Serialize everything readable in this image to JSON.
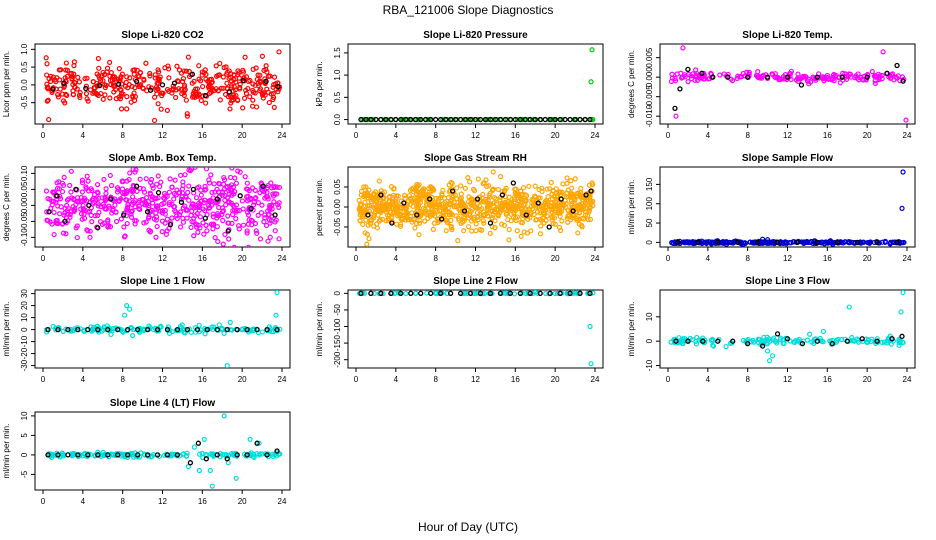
{
  "figure_title": "RBA_121006  Slope Diagnostics",
  "x_axis_label": "Hour of Day (UTC)",
  "colors": {
    "axis": "#000000",
    "overlay_points": "#000000"
  },
  "chart_data": [
    {
      "type": "scatter",
      "title": "Slope Li-820 CO2",
      "ylabel": "Licor ppm per min.",
      "xlim": [
        0,
        24
      ],
      "xticks": [
        0,
        4,
        8,
        12,
        16,
        20,
        24
      ],
      "ylim": [
        -1.1,
        1.15
      ],
      "yticks": [
        -0.5,
        0.0,
        0.5,
        1.0
      ],
      "ytick_labels": [
        "-0.5",
        "0.0",
        "0.5",
        "1.0"
      ],
      "color": "#ff0000",
      "n_points": 400,
      "spread": 0.28,
      "outliers": [
        [
          11.2,
          -1.0
        ],
        [
          23.7,
          0.93
        ],
        [
          14.6,
          0.78
        ],
        [
          14.5,
          -0.88
        ]
      ],
      "black_points": [
        [
          2.1,
          0.05
        ],
        [
          4.3,
          -0.1
        ],
        [
          7.6,
          0.02
        ],
        [
          9.4,
          0.1
        ],
        [
          12.0,
          0.0
        ],
        [
          13.2,
          0.05
        ],
        [
          15.0,
          0.3
        ],
        [
          16.3,
          -0.3
        ],
        [
          18.7,
          -0.2
        ],
        [
          20.1,
          0.12
        ],
        [
          22.4,
          0.1
        ],
        [
          23.6,
          -0.05
        ],
        [
          1.0,
          -0.12
        ],
        [
          5.7,
          -0.02
        ],
        [
          10.8,
          -0.15
        ]
      ]
    },
    {
      "type": "scatter",
      "title": "Slope Li-820 Pressure",
      "ylabel": "kPa per min.",
      "xlim": [
        0,
        24
      ],
      "xticks": [
        0,
        4,
        8,
        12,
        16,
        20,
        24
      ],
      "ylim": [
        -0.1,
        1.7
      ],
      "yticks": [
        0.0,
        0.5,
        1.0,
        1.5
      ],
      "ytick_labels": [
        "0.0",
        "0.5",
        "1.0",
        "1.5"
      ],
      "color": "#00cc00",
      "n_points": 80,
      "spread": 0.0,
      "outliers": [
        [
          23.7,
          1.57
        ],
        [
          23.6,
          0.85
        ]
      ],
      "black_points": [
        [
          0.5,
          0.0
        ],
        [
          1.0,
          0.0
        ],
        [
          1.5,
          0.0
        ],
        [
          2.0,
          0.0
        ],
        [
          2.5,
          0.0
        ],
        [
          3.0,
          0.0
        ],
        [
          3.5,
          0.0
        ],
        [
          4.0,
          0.0
        ],
        [
          4.5,
          0.0
        ],
        [
          5.0,
          0.0
        ],
        [
          5.5,
          0.0
        ],
        [
          6.0,
          0.0
        ],
        [
          6.5,
          0.0
        ],
        [
          7.0,
          0.0
        ],
        [
          7.5,
          0.0
        ],
        [
          8.0,
          0.0
        ],
        [
          8.5,
          0.0
        ],
        [
          9.0,
          0.0
        ],
        [
          9.5,
          0.0
        ],
        [
          10.0,
          0.0
        ],
        [
          10.5,
          0.0
        ],
        [
          11.0,
          0.0
        ],
        [
          11.5,
          0.0
        ],
        [
          12.0,
          0.0
        ],
        [
          12.5,
          0.0
        ],
        [
          13.0,
          0.0
        ],
        [
          13.5,
          0.0
        ],
        [
          14.0,
          0.0
        ],
        [
          14.5,
          0.0
        ],
        [
          15.0,
          0.0
        ],
        [
          15.5,
          0.0
        ],
        [
          16.0,
          0.0
        ],
        [
          16.5,
          0.0
        ],
        [
          17.0,
          0.0
        ],
        [
          17.5,
          0.0
        ],
        [
          18.0,
          0.0
        ],
        [
          18.5,
          0.0
        ],
        [
          19.0,
          0.0
        ],
        [
          19.5,
          0.0
        ],
        [
          20.0,
          0.0
        ],
        [
          20.5,
          0.0
        ],
        [
          21.0,
          0.0
        ],
        [
          21.5,
          0.0
        ],
        [
          22.0,
          0.0
        ],
        [
          22.5,
          0.0
        ],
        [
          23.0,
          0.0
        ],
        [
          23.5,
          0.0
        ]
      ]
    },
    {
      "type": "scatter",
      "title": "Slope Li-820 Temp.",
      "ylabel": "degrees C per min.",
      "xlim": [
        0,
        24
      ],
      "xticks": [
        0,
        4,
        8,
        12,
        16,
        20,
        24
      ],
      "ylim": [
        -0.012,
        0.0085
      ],
      "yticks": [
        -0.01,
        -0.005,
        0.0,
        0.005
      ],
      "ytick_labels": [
        "-0.010",
        "-0.005",
        "0.000",
        "0.005"
      ],
      "color": "#ff00ff",
      "n_points": 200,
      "spread": 0.0006,
      "outliers": [
        [
          1.5,
          0.0075
        ],
        [
          0.8,
          -0.01
        ],
        [
          23.9,
          -0.011
        ],
        [
          21.6,
          0.0065
        ]
      ],
      "black_points": [
        [
          0.7,
          -0.008
        ],
        [
          1.2,
          -0.003
        ],
        [
          2.0,
          0.002
        ],
        [
          3.4,
          0.001
        ],
        [
          4.5,
          0.0
        ],
        [
          6.0,
          0.0
        ],
        [
          8.0,
          0.0
        ],
        [
          10.0,
          0.0
        ],
        [
          12.0,
          0.0
        ],
        [
          13.4,
          -0.002
        ],
        [
          15.0,
          0.0
        ],
        [
          17.5,
          0.0
        ],
        [
          20.0,
          0.0
        ],
        [
          22.0,
          0.001
        ],
        [
          23.0,
          0.003
        ],
        [
          23.6,
          -0.001
        ]
      ]
    },
    {
      "type": "scatter",
      "title": "Slope Amb. Box Temp.",
      "ylabel": "degrees C per min.",
      "xlim": [
        0,
        24
      ],
      "xticks": [
        0,
        4,
        8,
        12,
        16,
        20,
        24
      ],
      "ylim": [
        -0.13,
        0.12
      ],
      "yticks": [
        -0.1,
        -0.05,
        0.0,
        0.05,
        0.1
      ],
      "ytick_labels": [
        "-0.10",
        "-0.05",
        "0.00",
        "0.05",
        "0.10"
      ],
      "color": "#ff00ff",
      "n_points": 600,
      "spread": 0.05,
      "outliers": [],
      "black_points": [
        [
          0.6,
          -0.02
        ],
        [
          1.4,
          0.03
        ],
        [
          2.2,
          -0.05
        ],
        [
          3.3,
          0.05
        ],
        [
          4.6,
          0.0
        ],
        [
          5.5,
          -0.07
        ],
        [
          6.8,
          0.02
        ],
        [
          8.1,
          -0.03
        ],
        [
          9.4,
          0.06
        ],
        [
          10.5,
          -0.02
        ],
        [
          11.6,
          0.04
        ],
        [
          12.8,
          -0.06
        ],
        [
          13.9,
          0.01
        ],
        [
          15.1,
          0.05
        ],
        [
          16.3,
          -0.04
        ],
        [
          17.5,
          0.02
        ],
        [
          18.6,
          -0.08
        ],
        [
          19.8,
          0.03
        ],
        [
          20.9,
          -0.01
        ],
        [
          22.1,
          0.06
        ],
        [
          23.3,
          -0.03
        ]
      ]
    },
    {
      "type": "scatter",
      "title": "Slope Gas Stream RH",
      "ylabel": "percent per min.",
      "xlim": [
        0,
        24
      ],
      "xticks": [
        0,
        4,
        8,
        12,
        16,
        20,
        24
      ],
      "ylim": [
        -0.1,
        0.1
      ],
      "yticks": [
        -0.05,
        0.0,
        0.05
      ],
      "ytick_labels": [
        "-0.05",
        "0.00",
        "0.05"
      ],
      "color": "#ffa500",
      "n_points": 900,
      "spread": 0.028,
      "outliers": [],
      "black_points": [
        [
          1.2,
          -0.02
        ],
        [
          2.5,
          0.03
        ],
        [
          3.6,
          -0.04
        ],
        [
          4.8,
          0.01
        ],
        [
          6.1,
          -0.02
        ],
        [
          7.4,
          0.02
        ],
        [
          8.6,
          -0.03
        ],
        [
          9.7,
          0.04
        ],
        [
          10.9,
          -0.01
        ],
        [
          12.2,
          0.02
        ],
        [
          13.5,
          -0.04
        ],
        [
          14.7,
          0.03
        ],
        [
          15.8,
          0.06
        ],
        [
          17.1,
          -0.02
        ],
        [
          18.3,
          0.01
        ],
        [
          19.4,
          -0.05
        ],
        [
          20.6,
          0.02
        ],
        [
          21.8,
          -0.01
        ],
        [
          23.1,
          0.03
        ],
        [
          23.6,
          0.04
        ]
      ]
    },
    {
      "type": "scatter",
      "title": "Slope Sample Flow",
      "ylabel": "ml/min per min.",
      "xlim": [
        0,
        24
      ],
      "xticks": [
        0,
        4,
        8,
        12,
        16,
        20,
        24
      ],
      "ylim": [
        -12,
        195
      ],
      "yticks": [
        0,
        50,
        100,
        150
      ],
      "ytick_labels": [
        "0",
        "50",
        "100",
        "150"
      ],
      "color": "#0000cc",
      "n_points": 300,
      "spread": 1.5,
      "outliers": [
        [
          23.6,
          182
        ],
        [
          23.5,
          88
        ],
        [
          9.5,
          8
        ],
        [
          10.0,
          7
        ],
        [
          7.5,
          -6
        ]
      ],
      "black_points": [
        [
          1.0,
          0
        ],
        [
          3.0,
          0
        ],
        [
          5.0,
          0
        ],
        [
          7.0,
          0
        ],
        [
          9.0,
          0
        ],
        [
          11.0,
          0
        ],
        [
          13.0,
          0
        ],
        [
          15.0,
          0
        ],
        [
          17.0,
          0
        ],
        [
          19.0,
          0
        ],
        [
          21.0,
          0
        ],
        [
          23.0,
          0
        ]
      ]
    },
    {
      "type": "scatter",
      "title": "Slope Line 1 Flow",
      "ylabel": "ml/min per min.",
      "xlim": [
        0,
        24
      ],
      "xticks": [
        0,
        4,
        8,
        12,
        16,
        20,
        24
      ],
      "ylim": [
        -32,
        33
      ],
      "yticks": [
        -30,
        -20,
        -10,
        0,
        10,
        20,
        30
      ],
      "ytick_labels": [
        "-30",
        "-20",
        "-10",
        "0",
        "10",
        "20",
        "30"
      ],
      "color": "#00dddd",
      "n_points": 150,
      "spread": 1.5,
      "outliers": [
        [
          8.4,
          20
        ],
        [
          8.2,
          12
        ],
        [
          9.0,
          -5
        ],
        [
          18.5,
          -30
        ],
        [
          23.5,
          31
        ],
        [
          23.4,
          12
        ],
        [
          18.8,
          6
        ],
        [
          17.7,
          4
        ],
        [
          8.7,
          17
        ]
      ],
      "black_points": [
        [
          0.5,
          0
        ],
        [
          1.5,
          0
        ],
        [
          2.5,
          0
        ],
        [
          3.5,
          0
        ],
        [
          4.5,
          0
        ],
        [
          5.5,
          0
        ],
        [
          6.5,
          0
        ],
        [
          7.5,
          0
        ],
        [
          8.5,
          0
        ],
        [
          9.5,
          0
        ],
        [
          10.5,
          0
        ],
        [
          11.5,
          0
        ],
        [
          12.5,
          0
        ],
        [
          13.5,
          0
        ],
        [
          14.5,
          0
        ],
        [
          15.5,
          0
        ],
        [
          16.5,
          0
        ],
        [
          17.5,
          0
        ],
        [
          18.5,
          0
        ],
        [
          19.5,
          0
        ],
        [
          20.5,
          0
        ],
        [
          21.5,
          0
        ],
        [
          22.5,
          0
        ],
        [
          23.5,
          0
        ]
      ]
    },
    {
      "type": "scatter",
      "title": "Slope Line 2 Flow",
      "ylabel": "ml/min per min.",
      "xlim": [
        0,
        24
      ],
      "xticks": [
        0,
        4,
        8,
        12,
        16,
        20,
        24
      ],
      "ylim": [
        -225,
        10
      ],
      "yticks": [
        -200,
        -150,
        -100,
        -50,
        0
      ],
      "ytick_labels": [
        "-200",
        "-150",
        "-100",
        "-50",
        "0"
      ],
      "color": "#00dddd",
      "n_points": 80,
      "spread": 0.5,
      "outliers": [
        [
          23.5,
          -100
        ],
        [
          23.6,
          -212
        ],
        [
          18.0,
          3
        ]
      ],
      "black_points": [
        [
          0.5,
          0
        ],
        [
          1.5,
          0
        ],
        [
          2.5,
          0
        ],
        [
          3.5,
          0
        ],
        [
          4.5,
          0
        ],
        [
          5.5,
          0
        ],
        [
          6.5,
          0
        ],
        [
          7.5,
          0
        ],
        [
          8.5,
          0
        ],
        [
          9.5,
          0
        ],
        [
          10.5,
          0
        ],
        [
          11.5,
          0
        ],
        [
          12.5,
          0
        ],
        [
          13.5,
          0
        ],
        [
          14.5,
          0
        ],
        [
          15.5,
          0
        ],
        [
          16.5,
          0
        ],
        [
          17.5,
          0
        ],
        [
          18.5,
          0
        ],
        [
          19.5,
          0
        ],
        [
          20.5,
          0
        ],
        [
          21.5,
          0
        ],
        [
          22.5,
          0
        ],
        [
          23.5,
          0
        ]
      ]
    },
    {
      "type": "scatter",
      "title": "Slope Line 3 Flow",
      "ylabel": "ml/min per min.",
      "xlim": [
        0,
        24
      ],
      "xticks": [
        0,
        4,
        8,
        12,
        16,
        20,
        24
      ],
      "ylim": [
        -11,
        21
      ],
      "yticks": [
        -10,
        0,
        10
      ],
      "ytick_labels": [
        "-10",
        "0",
        "10"
      ],
      "color": "#00dddd",
      "n_points": 150,
      "spread": 0.8,
      "outliers": [
        [
          23.6,
          20
        ],
        [
          23.4,
          12
        ],
        [
          18.2,
          14
        ],
        [
          10.2,
          -8
        ],
        [
          10.5,
          -6
        ],
        [
          15.6,
          4
        ],
        [
          10.0,
          -4
        ]
      ],
      "black_points": [
        [
          0.8,
          0
        ],
        [
          2.0,
          0
        ],
        [
          3.5,
          0
        ],
        [
          5.0,
          0
        ],
        [
          6.5,
          0
        ],
        [
          8.0,
          -1
        ],
        [
          9.5,
          -2
        ],
        [
          11.0,
          3
        ],
        [
          12.0,
          1
        ],
        [
          13.5,
          -1
        ],
        [
          15.0,
          0
        ],
        [
          16.5,
          -1
        ],
        [
          18.0,
          0
        ],
        [
          19.5,
          1
        ],
        [
          21.0,
          0
        ],
        [
          22.5,
          1
        ],
        [
          23.5,
          2
        ]
      ]
    },
    {
      "type": "scatter",
      "title": "Slope Line 4 (LT) Flow",
      "ylabel": "ml/min per min.",
      "xlim": [
        0,
        24
      ],
      "xticks": [
        0,
        4,
        8,
        12,
        16,
        20,
        24
      ],
      "ylim": [
        -9,
        11
      ],
      "yticks": [
        -5,
        0,
        5,
        10
      ],
      "ytick_labels": [
        "-5",
        "0",
        "5",
        "10"
      ],
      "color": "#00dddd",
      "n_points": 160,
      "spread": 0.3,
      "outliers": [
        [
          17.0,
          -8
        ],
        [
          18.2,
          10
        ],
        [
          15.7,
          -4
        ],
        [
          16.2,
          4
        ],
        [
          19.4,
          -6
        ],
        [
          20.8,
          4
        ],
        [
          21.7,
          3
        ],
        [
          16.8,
          -4
        ],
        [
          18.6,
          -2
        ],
        [
          15.2,
          2
        ],
        [
          14.6,
          -3
        ]
      ],
      "black_points": [
        [
          0.5,
          0
        ],
        [
          1.5,
          0
        ],
        [
          2.5,
          0
        ],
        [
          3.5,
          0
        ],
        [
          4.5,
          0
        ],
        [
          5.5,
          0
        ],
        [
          6.5,
          0
        ],
        [
          7.5,
          0
        ],
        [
          8.5,
          0
        ],
        [
          9.5,
          0
        ],
        [
          10.5,
          0
        ],
        [
          11.5,
          0
        ],
        [
          12.5,
          0
        ],
        [
          13.5,
          0
        ],
        [
          14.8,
          -2
        ],
        [
          15.6,
          3
        ],
        [
          16.4,
          -1
        ],
        [
          17.5,
          0
        ],
        [
          18.5,
          -1
        ],
        [
          19.5,
          0
        ],
        [
          20.5,
          0
        ],
        [
          21.5,
          3
        ],
        [
          22.5,
          0
        ],
        [
          23.5,
          1
        ]
      ]
    }
  ]
}
